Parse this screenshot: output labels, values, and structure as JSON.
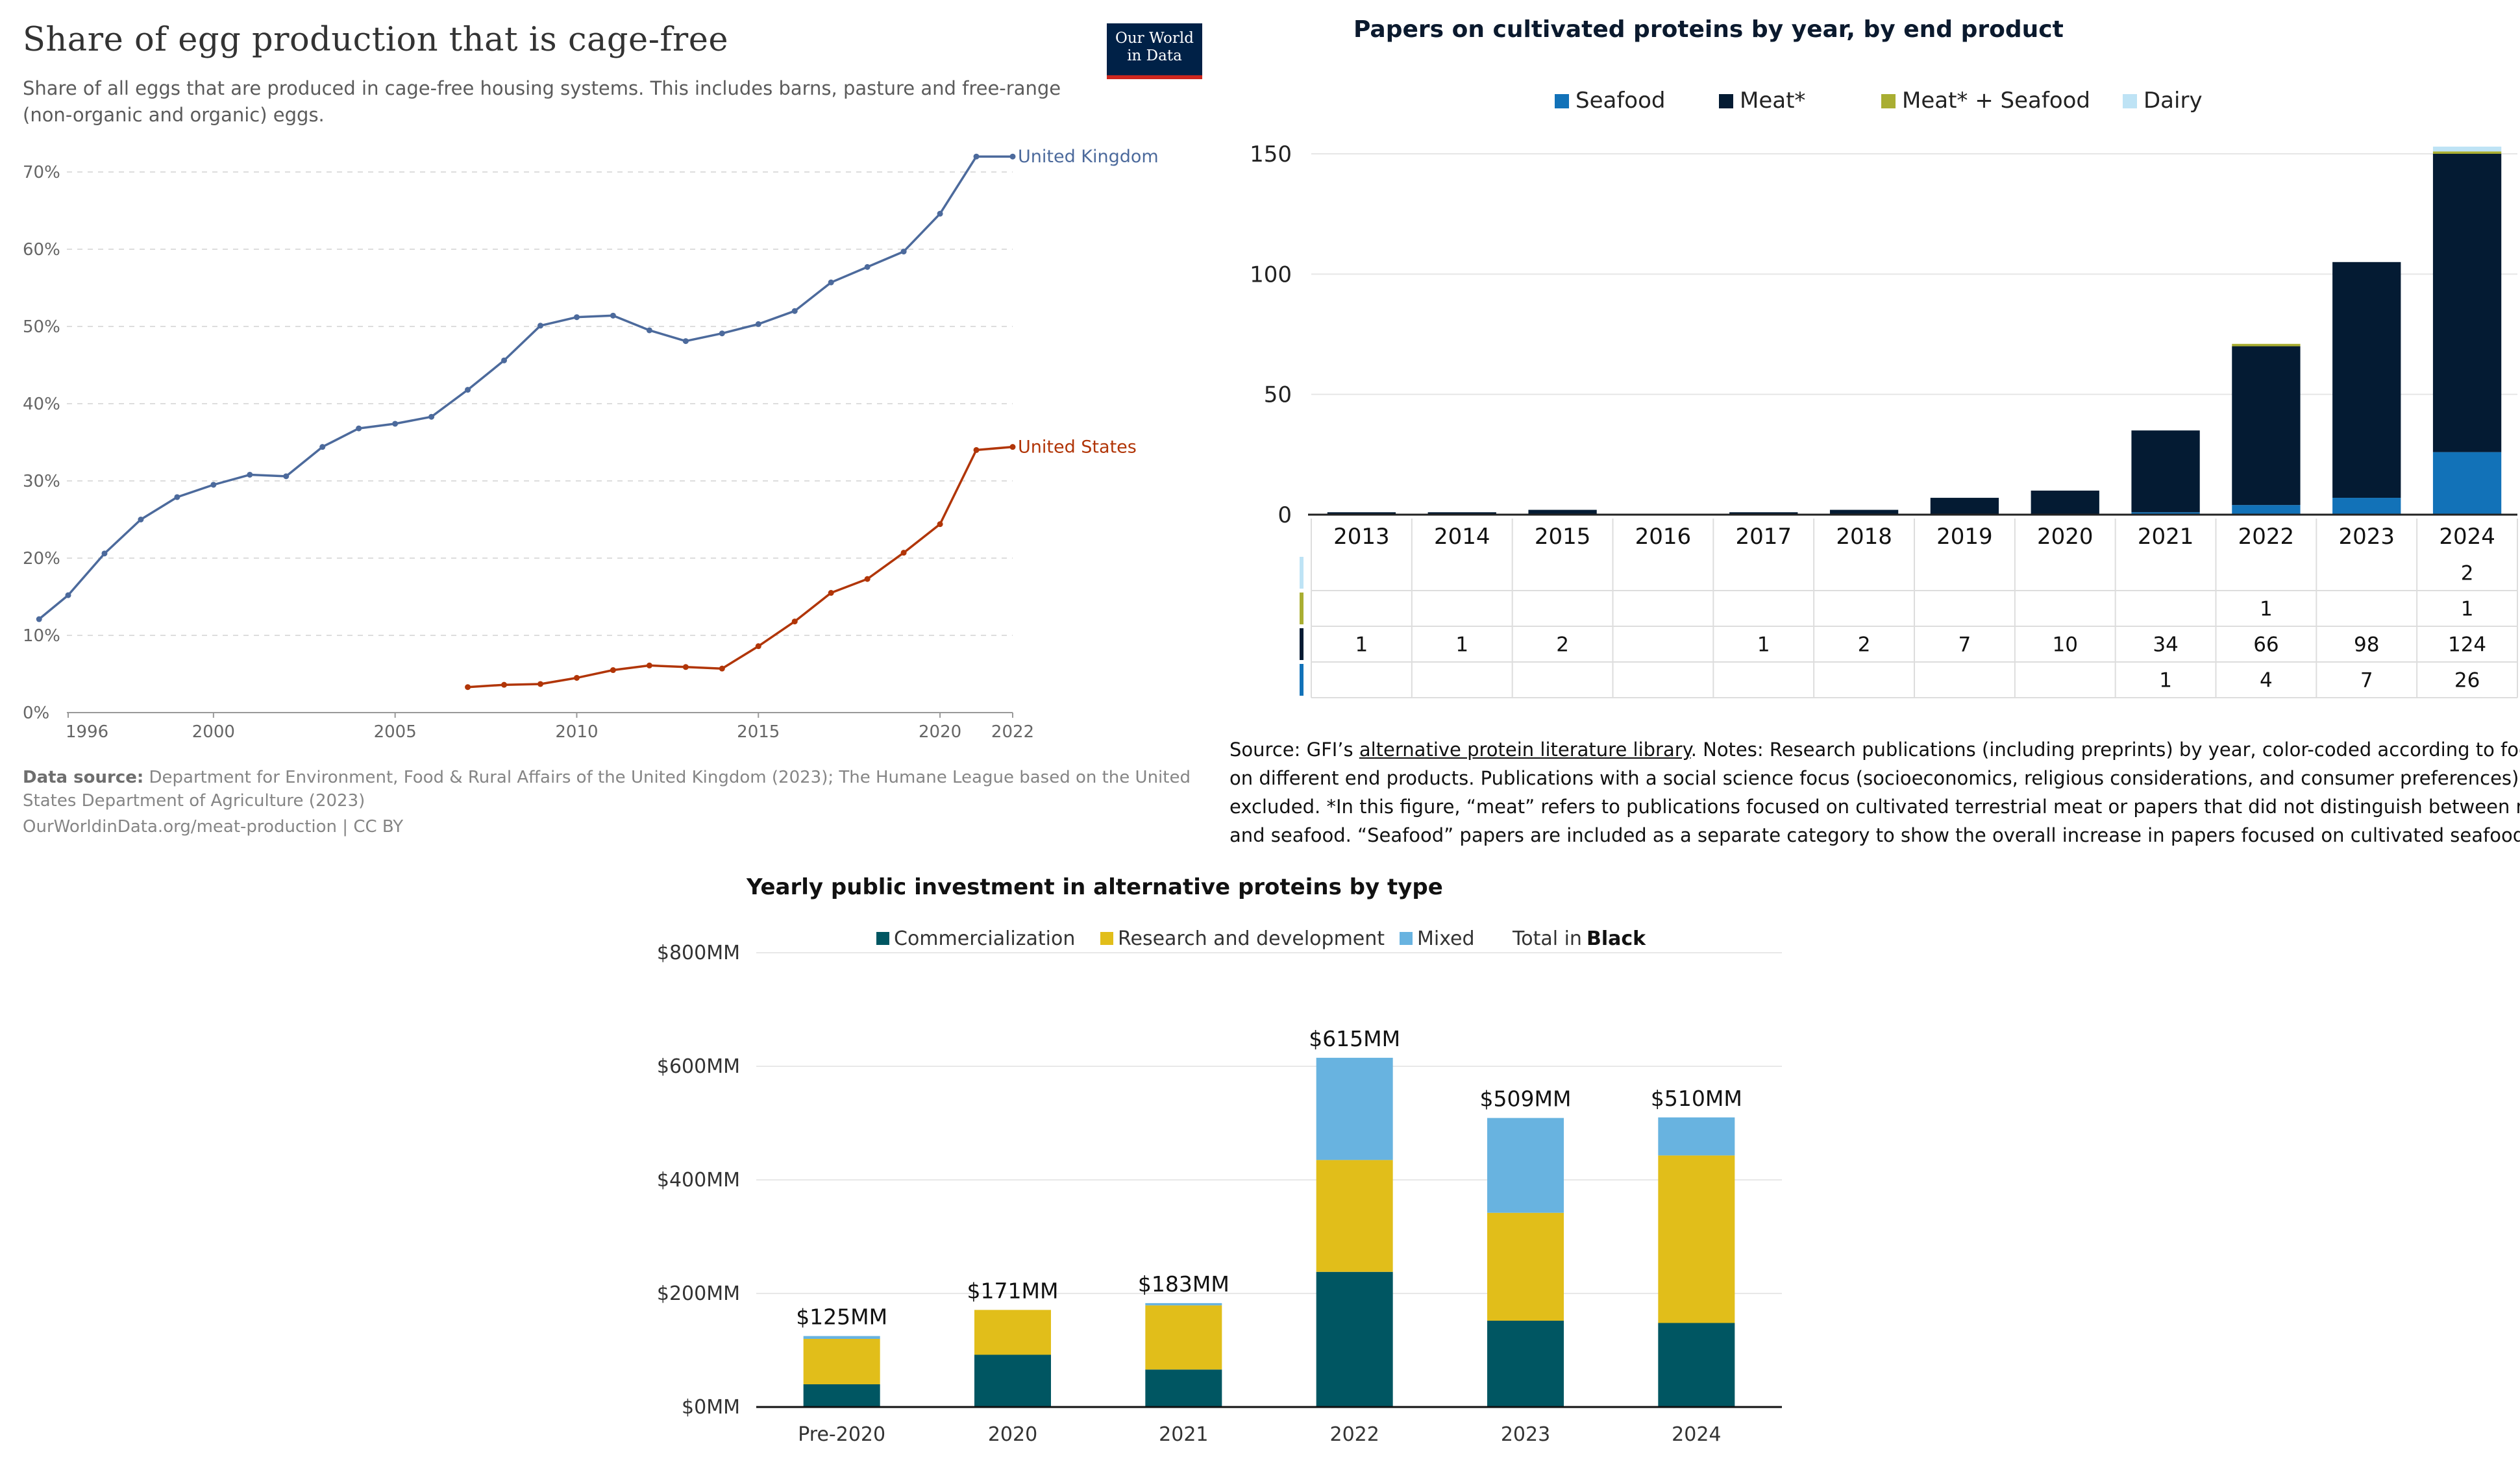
{
  "chart_data": [
    {
      "type": "line",
      "title": "Share of egg production that is cage-free",
      "subtitle_line1": "Share of all eggs that are produced in cage-free housing systems. This includes barns, pasture and free-range",
      "subtitle_line2": "(non-organic and organic) eggs.",
      "logo_line1": "Our World",
      "logo_line2": "in Data",
      "ylim": [
        0,
        70
      ],
      "y_ticks": [
        0,
        10,
        20,
        30,
        40,
        50,
        60,
        70
      ],
      "y_tick_labels": [
        "0%",
        "10%",
        "20%",
        "30%",
        "40%",
        "50%",
        "60%",
        "70%"
      ],
      "x_ticks": [
        1996,
        2000,
        2005,
        2010,
        2015,
        2020,
        2022
      ],
      "x_tick_labels": [
        "1996",
        "2000",
        "2005",
        "2010",
        "2015",
        "2020",
        "2022"
      ],
      "xlim": [
        1996,
        2022
      ],
      "series": [
        {
          "name": "United Kingdom",
          "color": "#4C6A9C",
          "x": [
            1995,
            1996,
            1997,
            1998,
            1999,
            2000,
            2001,
            2002,
            2003,
            2004,
            2005,
            2006,
            2007,
            2008,
            2009,
            2010,
            2011,
            2012,
            2013,
            2014,
            2015,
            2016,
            2017,
            2018,
            2019,
            2020,
            2021,
            2022
          ],
          "y": [
            12.1,
            15.2,
            20.6,
            25.0,
            27.9,
            29.5,
            30.8,
            30.6,
            34.4,
            36.8,
            37.4,
            38.3,
            41.8,
            45.6,
            50.1,
            51.2,
            51.4,
            49.5,
            48.1,
            49.1,
            50.3,
            52.0,
            55.7,
            57.7,
            59.7,
            64.6,
            72.0,
            72.0
          ]
        },
        {
          "name": "United States",
          "color": "#B13507",
          "x": [
            2007,
            2008,
            2009,
            2010,
            2011,
            2012,
            2013,
            2014,
            2015,
            2016,
            2017,
            2018,
            2019,
            2020,
            2021,
            2022
          ],
          "y": [
            3.3,
            3.6,
            3.7,
            4.5,
            5.5,
            6.1,
            5.9,
            5.7,
            8.6,
            11.8,
            15.5,
            17.3,
            20.7,
            24.4,
            34.0,
            34.4
          ]
        }
      ],
      "source_label": "Data source:",
      "source_text_line1": "Department for Environment, Food & Rural Affairs of the United Kingdom (2023); The Humane League based on the United",
      "source_text_line2": "States Department of Agriculture (2023)",
      "footer": "OurWorldinData.org/meat-production | CC BY"
    },
    {
      "type": "bar",
      "title": "Papers on cultivated proteins by year, by end product",
      "categories": [
        "2013",
        "2014",
        "2015",
        "2016",
        "2017",
        "2018",
        "2019",
        "2020",
        "2021",
        "2022",
        "2023",
        "2024"
      ],
      "ylim": [
        0,
        150
      ],
      "y_ticks": [
        0,
        50,
        100,
        150
      ],
      "legend": [
        "Seafood",
        "Meat*",
        "Meat* + Seafood",
        "Dairy"
      ],
      "series": [
        {
          "name": "Seafood",
          "color": "#1272B8",
          "values": [
            null,
            null,
            null,
            null,
            null,
            null,
            null,
            null,
            1,
            4,
            7,
            26
          ],
          "table_labels": [
            "",
            "",
            "",
            "",
            "",
            "",
            "",
            "",
            "1",
            "4",
            "7",
            "26"
          ]
        },
        {
          "name": "Meat*",
          "color": "#041B33",
          "values": [
            1,
            1,
            2,
            null,
            1,
            2,
            7,
            10,
            34,
            66,
            98,
            124
          ],
          "table_labels": [
            "1",
            "1",
            "2",
            "",
            "1",
            "2",
            "7",
            "10",
            "34",
            "66",
            "98",
            "124"
          ]
        },
        {
          "name": "Meat* + Seafood",
          "color": "#A9AE32",
          "values": [
            null,
            null,
            null,
            null,
            null,
            null,
            null,
            null,
            null,
            1,
            null,
            1
          ],
          "table_labels": [
            "",
            "",
            "",
            "",
            "",
            "",
            "",
            "",
            "",
            "1",
            "",
            "1"
          ]
        },
        {
          "name": "Dairy",
          "color": "#BEE3F5",
          "values": [
            null,
            null,
            null,
            null,
            null,
            null,
            null,
            null,
            null,
            null,
            null,
            2
          ],
          "table_labels": [
            "",
            "",
            "",
            "",
            "",
            "",
            "",
            "",
            "",
            "",
            "",
            "2"
          ]
        }
      ],
      "note_prefix": "Source: GFI’s ",
      "note_link": "alternative protein literature library",
      "note_suffix": ". Notes: Research publications (including preprints) by year, color-coded according to focus",
      "note_line2": "on different end products. Publications with a social science focus (socioeconomics, religious considerations, and consumer preferences) are",
      "note_line3": "excluded. *In this figure, “meat” refers to publications focused on cultivated terrestrial meat or papers that did not distinguish between meat",
      "note_line4": "and seafood. “Seafood” papers are included as a separate category to show the overall increase in papers focused on cultivated seafood."
    },
    {
      "type": "bar",
      "title": "Yearly public investment in alternative proteins by type",
      "categories": [
        "Pre-2020",
        "2020",
        "2021",
        "2022",
        "2023",
        "2024"
      ],
      "ylim": [
        0,
        800
      ],
      "y_ticks": [
        0,
        200,
        400,
        600,
        800
      ],
      "y_tick_labels": [
        "$0MM",
        "$200MM",
        "$400MM",
        "$600MM",
        "$800MM"
      ],
      "legend_total_prefix": "Total in ",
      "legend_total_word": "Black",
      "series": [
        {
          "name": "Commercialization",
          "color": "#005662",
          "values": [
            40,
            92,
            66,
            238,
            152,
            148
          ]
        },
        {
          "name": "Research and development",
          "color": "#E1BE1A",
          "values": [
            80,
            79,
            113,
            197,
            190,
            295
          ]
        },
        {
          "name": "Mixed",
          "color": "#68B3E0",
          "values": [
            5,
            0,
            4,
            180,
            167,
            67
          ]
        }
      ],
      "totals": [
        "$125MM",
        "$171MM",
        "$183MM",
        "$615MM",
        "$509MM",
        "$510MM"
      ]
    }
  ]
}
